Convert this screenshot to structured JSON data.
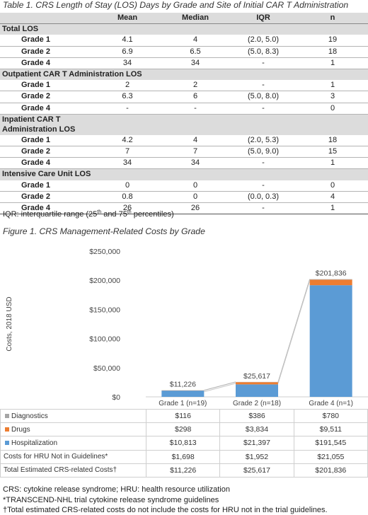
{
  "table1": {
    "caption": "Table 1. CRS Length of Stay (LOS) Days by Grade and Site of Initial CAR T Administration",
    "headers": [
      "",
      "Mean",
      "Median",
      "IQR",
      "n"
    ],
    "sections": [
      {
        "title": "Total LOS",
        "rows": [
          [
            "Grade 1",
            "4.1",
            "4",
            "(2.0, 5.0)",
            "19"
          ],
          [
            "Grade 2",
            "6.9",
            "6.5",
            "(5.0, 8.3)",
            "18"
          ],
          [
            "Grade 4",
            "34",
            "34",
            "-",
            "1"
          ]
        ]
      },
      {
        "title": "Outpatient CAR T Administration LOS",
        "rows": [
          [
            "Grade 1",
            "2",
            "2",
            "-",
            "1"
          ],
          [
            "Grade 2",
            "6.3",
            "6",
            "(5.0, 8.0)",
            "3"
          ],
          [
            "Grade 4",
            "-",
            "-",
            "-",
            "0"
          ]
        ]
      },
      {
        "title": "Inpatient CAR T Administration LOS",
        "rows": [
          [
            "Grade 1",
            "4.2",
            "4",
            "(2.0, 5.3)",
            "18"
          ],
          [
            "Grade 2",
            "7",
            "7",
            "(5.0, 9.0)",
            "15"
          ],
          [
            "Grade 4",
            "34",
            "34",
            "-",
            "1"
          ]
        ]
      },
      {
        "title": "Intensive Care Unit LOS",
        "rows": [
          [
            "Grade 1",
            "0",
            "0",
            "-",
            "0"
          ],
          [
            "Grade 2",
            "0.8",
            "0",
            "(0.0, 0.3)",
            "4"
          ],
          [
            "Grade 4",
            "26",
            "26",
            "-",
            "1"
          ]
        ]
      }
    ],
    "note_prefix": "IQR: interquartile range (25",
    "note_sup1": "th",
    "note_mid": " and 75",
    "note_sup2": "th",
    "note_suffix": " percentiles)"
  },
  "figure1": {
    "caption": "Figure 1. CRS Management-Related Costs by Grade"
  },
  "chart_data": {
    "type": "bar",
    "stacked": true,
    "categories": [
      "Grade 1 (n=19)",
      "Grade 2 (n=18)",
      "Grade 4 (n=1)"
    ],
    "series": [
      {
        "name": "Hospitalization",
        "values": [
          10813,
          21397,
          191545
        ],
        "color": "#5b9bd5"
      },
      {
        "name": "Drugs",
        "values": [
          298,
          3834,
          9511
        ],
        "color": "#ed7d31"
      },
      {
        "name": "Diagnostics",
        "values": [
          116,
          386,
          780
        ],
        "color": "#a5a5a5"
      }
    ],
    "totals_labels": [
      "$11,226",
      "$25,617",
      "$201,836"
    ],
    "ylabel": "Costs, 2018 USD",
    "ylim": [
      0,
      250000
    ],
    "yticks": [
      "$0",
      "$50,000",
      "$100,000",
      "$150,000",
      "$200,000",
      "$250,000"
    ],
    "ytick_values": [
      0,
      50000,
      100000,
      150000,
      200000,
      250000
    ],
    "connector_line": true
  },
  "cost_table": {
    "rows": [
      {
        "label": "Diagnostics",
        "legend_color": "#a5a5a5",
        "values": [
          "$116",
          "$386",
          "$780"
        ]
      },
      {
        "label": "Drugs",
        "legend_color": "#ed7d31",
        "values": [
          "$298",
          "$3,834",
          "$9,511"
        ]
      },
      {
        "label": "Hospitalization",
        "legend_color": "#5b9bd5",
        "values": [
          "$10,813",
          "$21,397",
          "$191,545"
        ]
      },
      {
        "label": "Costs for HRU Not in Guidelines*",
        "legend_color": "",
        "values": [
          "$1,698",
          "$1,952",
          "$21,055"
        ]
      },
      {
        "label": "Total Estimated CRS-related Costs†",
        "legend_color": "",
        "values": [
          "$11,226",
          "$25,617",
          "$201,836"
        ]
      }
    ]
  },
  "footnotes": {
    "line1": "CRS: cytokine release syndrome; HRU: health resource utilization",
    "line2": "*TRANSCEND-NHL trial cytokine release syndrome guidelines",
    "line3": "†Total estimated CRS-related costs do not include the costs for HRU not in the trial guidelines."
  }
}
